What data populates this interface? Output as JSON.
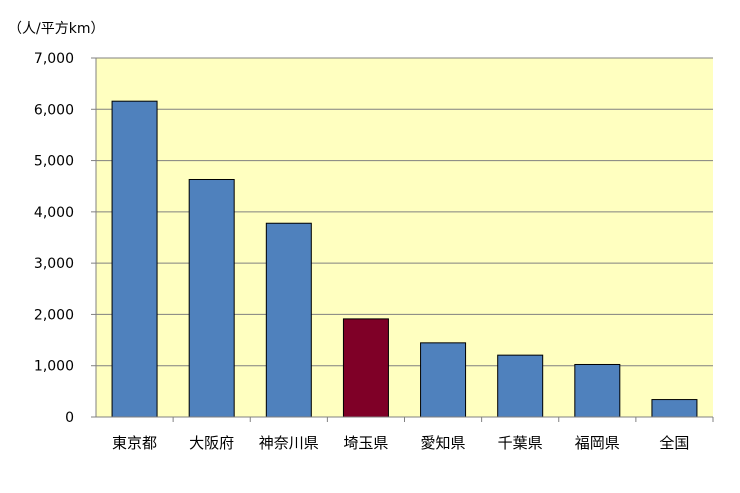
{
  "chart_data": {
    "type": "bar",
    "unit_label": "（人/平方km）",
    "categories": [
      "東京都",
      "大阪府",
      "神奈川県",
      "埼玉県",
      "愛知県",
      "千葉県",
      "福岡県",
      "全国"
    ],
    "values": [
      6158,
      4631,
      3778,
      1913,
      1446,
      1206,
      1024,
      340
    ],
    "ylim": [
      0,
      7000
    ],
    "yticks": [
      0,
      1000,
      2000,
      3000,
      4000,
      5000,
      6000,
      7000
    ],
    "ytick_labels": [
      "0",
      "1,000",
      "2,000",
      "3,000",
      "4,000",
      "5,000",
      "6,000",
      "7,000"
    ],
    "grid": true,
    "colors": {
      "plot_background": "#FFFFC0",
      "bar_default": "#4F81BD",
      "bar_highlight": "#7F0027",
      "highlight_category": "埼玉県",
      "gridline": "#808080",
      "bar_edge": "#000000"
    }
  }
}
